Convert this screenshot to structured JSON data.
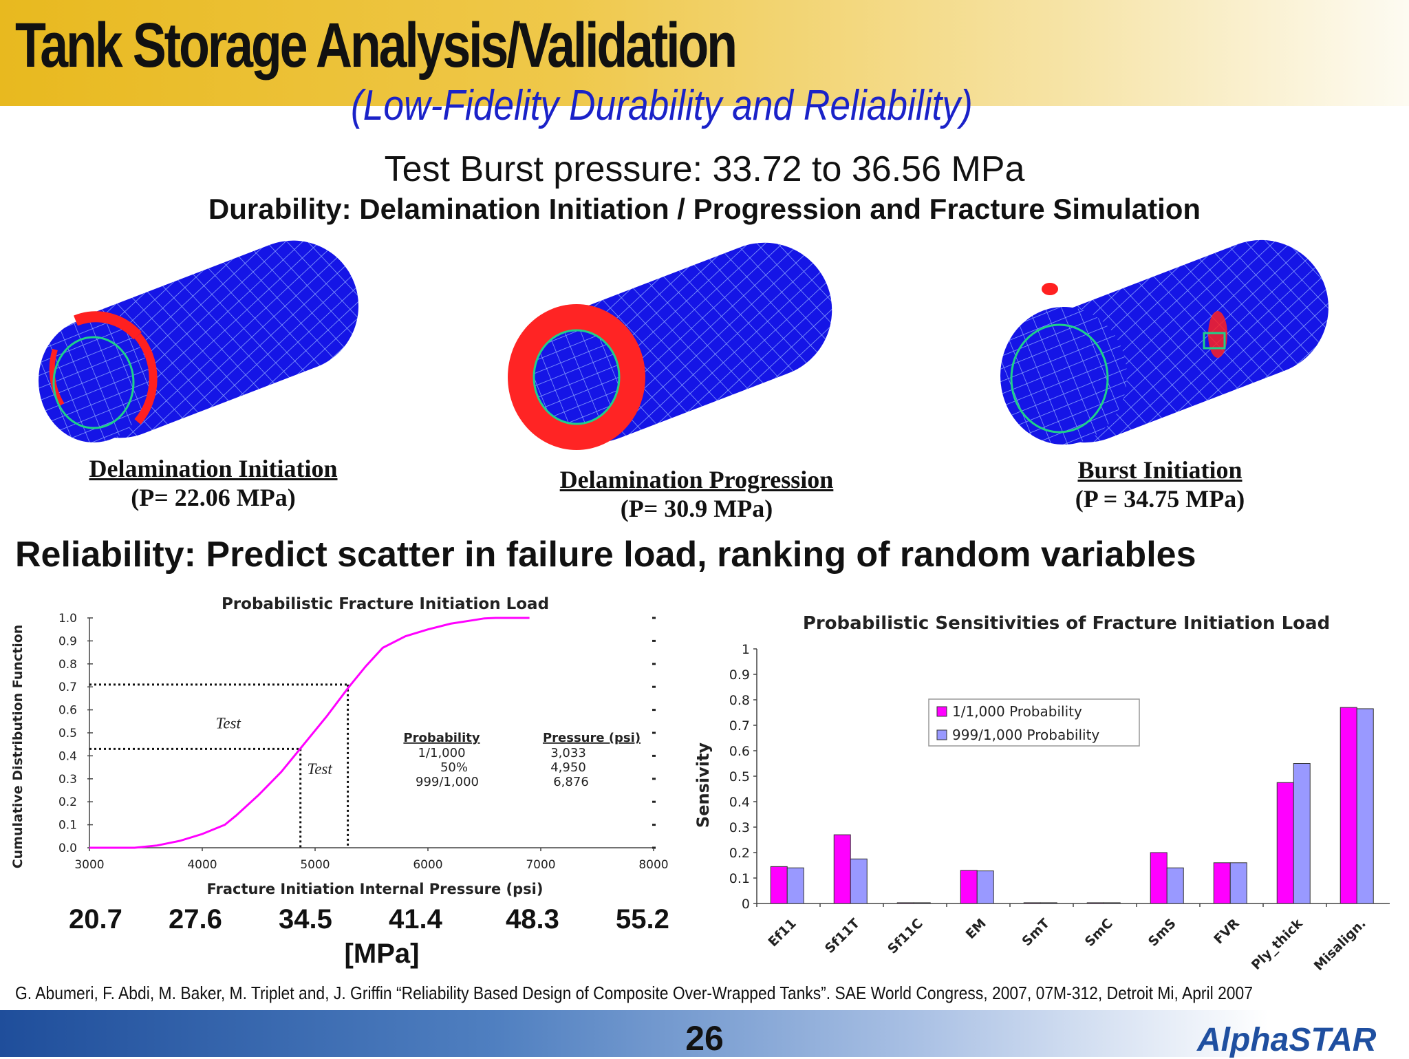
{
  "header": {
    "title": "Tank Storage Analysis/Validation",
    "subtitle": "(Low-Fidelity Durability and Reliability)"
  },
  "burst_pressure": "Test Burst pressure: 33.72 to 36.56 MPa",
  "durability_heading": "Durability:  Delamination Initiation / Progression and Fracture Simulation",
  "tanks": [
    {
      "label": "Delamination Initiation",
      "pressure": "(P= 22.06 MPa)"
    },
    {
      "label": "Delamination Progression",
      "pressure": "(P= 30.9 MPa)"
    },
    {
      "label": "Burst Initiation",
      "pressure": "(P = 34.75 MPa)"
    }
  ],
  "reliability_heading": "Reliability: Predict scatter in failure load, ranking of random variables",
  "mpa_axis": {
    "ticks": [
      "20.7",
      "27.6",
      "34.5",
      "41.4",
      "48.3",
      "55.2"
    ],
    "unit": "[MPa]"
  },
  "chart_data": [
    {
      "type": "line",
      "title": "Probabilistic Fracture Initiation Load",
      "xlabel": "Fracture Initiation Internal Pressure  (psi)",
      "ylabel": "Cumulative Distribution Function",
      "xlim": [
        3000,
        8000
      ],
      "ylim": [
        0,
        1
      ],
      "x_ticks": [
        "3000",
        "4000",
        "5000",
        "6000",
        "7000",
        "8000"
      ],
      "y_ticks": [
        "0.0",
        "0.1",
        "0.2",
        "0.3",
        "0.4",
        "0.5",
        "0.6",
        "0.7",
        "0.8",
        "0.9",
        "1.0"
      ],
      "series": [
        {
          "color": "#ff00ff",
          "x": [
            3000,
            3400,
            3600,
            3800,
            4000,
            4200,
            4300,
            4500,
            4700,
            4900,
            5100,
            5300,
            5450,
            5600,
            5800,
            6000,
            6200,
            6400,
            6500,
            6600,
            6900
          ],
          "y": [
            0.0,
            0.0,
            0.01,
            0.03,
            0.06,
            0.1,
            0.14,
            0.23,
            0.33,
            0.45,
            0.57,
            0.7,
            0.79,
            0.87,
            0.92,
            0.95,
            0.975,
            0.99,
            0.998,
            1.0,
            1.0
          ]
        }
      ],
      "annotations": [
        {
          "text": "Test",
          "x": 4120,
          "y": 0.52
        },
        {
          "text": "Test",
          "x": 4930,
          "y": 0.32
        }
      ],
      "reference_lines": [
        {
          "x": 4870,
          "y": 0.43
        },
        {
          "x": 5290,
          "y": 0.71
        }
      ],
      "table": {
        "headers": [
          "Probability",
          "Pressure (psi)"
        ],
        "rows": [
          [
            "1/1,000",
            "3,033"
          ],
          [
            "50%",
            "4,950"
          ],
          [
            "999/1,000",
            "6,876"
          ]
        ]
      }
    },
    {
      "type": "bar",
      "title": "Probabilistic Sensitivities of Fracture Initiation Load",
      "ylabel": "Sensivity",
      "ylim": [
        0,
        1
      ],
      "y_ticks": [
        "0",
        "0.1",
        "0.2",
        "0.3",
        "0.4",
        "0.5",
        "0.6",
        "0.7",
        "0.8",
        "0.9",
        "1"
      ],
      "categories": [
        "Ef11",
        "Sf11T",
        "Sf11C",
        "EM",
        "SmT",
        "SmC",
        "SmS",
        "FVR",
        "Ply_thick",
        "Misalign."
      ],
      "legend": "inside, upper-center",
      "series": [
        {
          "name": "1/1,000 Probability",
          "color": "#ff00ff",
          "values": [
            0.145,
            0.27,
            0.003,
            0.13,
            0.003,
            0.003,
            0.2,
            0.16,
            0.475,
            0.77
          ]
        },
        {
          "name": "999/1,000 Probability",
          "color": "#9999ff",
          "values": [
            0.14,
            0.175,
            0.003,
            0.128,
            0.003,
            0.003,
            0.14,
            0.16,
            0.55,
            0.765
          ]
        }
      ]
    }
  ],
  "reference": "G. Abumeri,  F. Abdi, M. Baker, M. Triplet and, J. Griffin “Reliability Based Design of Composite Over-Wrapped Tanks”.  SAE World Congress, 2007, 07M-312, Detroit Mi, April 2007",
  "page_number": "26",
  "logo_text": "AlphaSTAR"
}
